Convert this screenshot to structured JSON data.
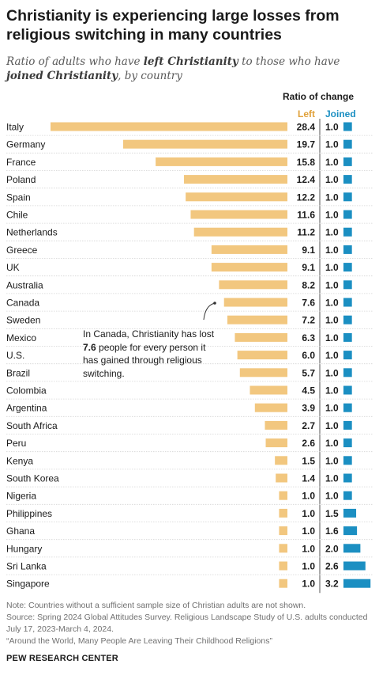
{
  "title": "Christianity is experiencing large losses from religious switching in many countries",
  "subtitle": {
    "part1": "Ratio of adults who have ",
    "left_term": "left Christianity",
    "part2": " to those who have ",
    "joined_term": "joined Christianity",
    "part3": ", by country"
  },
  "column_header": "Ratio of change",
  "legend": {
    "left": "Left",
    "joined": "Joined"
  },
  "colors": {
    "left": "#f2c77f",
    "joined": "#1b8fc2",
    "left_text": "#e0a13a",
    "joined_text": "#1b8fc2"
  },
  "annotation": {
    "before": "In Canada, Christianity has lost ",
    "value": "7.6",
    "after": " people for every person it has gained through religious switching."
  },
  "chart_data": {
    "type": "bar",
    "categories": [
      "Italy",
      "Germany",
      "France",
      "Poland",
      "Spain",
      "Chile",
      "Netherlands",
      "Greece",
      "UK",
      "Australia",
      "Canada",
      "Sweden",
      "Mexico",
      "U.S.",
      "Brazil",
      "Colombia",
      "Argentina",
      "South Africa",
      "Peru",
      "Kenya",
      "South Korea",
      "Nigeria",
      "Philippines",
      "Ghana",
      "Hungary",
      "Sri Lanka",
      "Singapore"
    ],
    "series": [
      {
        "name": "Left",
        "values": [
          28.4,
          19.7,
          15.8,
          12.4,
          12.2,
          11.6,
          11.2,
          9.1,
          9.1,
          8.2,
          7.6,
          7.2,
          6.3,
          6.0,
          5.7,
          4.5,
          3.9,
          2.7,
          2.6,
          1.5,
          1.4,
          1.0,
          1.0,
          1.0,
          1.0,
          1.0,
          1.0
        ]
      },
      {
        "name": "Joined",
        "values": [
          1.0,
          1.0,
          1.0,
          1.0,
          1.0,
          1.0,
          1.0,
          1.0,
          1.0,
          1.0,
          1.0,
          1.0,
          1.0,
          1.0,
          1.0,
          1.0,
          1.0,
          1.0,
          1.0,
          1.0,
          1.0,
          1.0,
          1.5,
          1.6,
          2.0,
          2.6,
          3.2
        ]
      }
    ]
  },
  "footnotes": {
    "note": "Note: Countries without a sufficient sample size of Christian adults are not shown.",
    "source": "Source: Spring 2024 Global Attitudes Survey. Religious Landscape Study of U.S. adults conducted July 17, 2023-March 4, 2024.",
    "report": "“Around the World, Many People Are Leaving Their Childhood Religions”"
  },
  "brand": "PEW RESEARCH CENTER"
}
